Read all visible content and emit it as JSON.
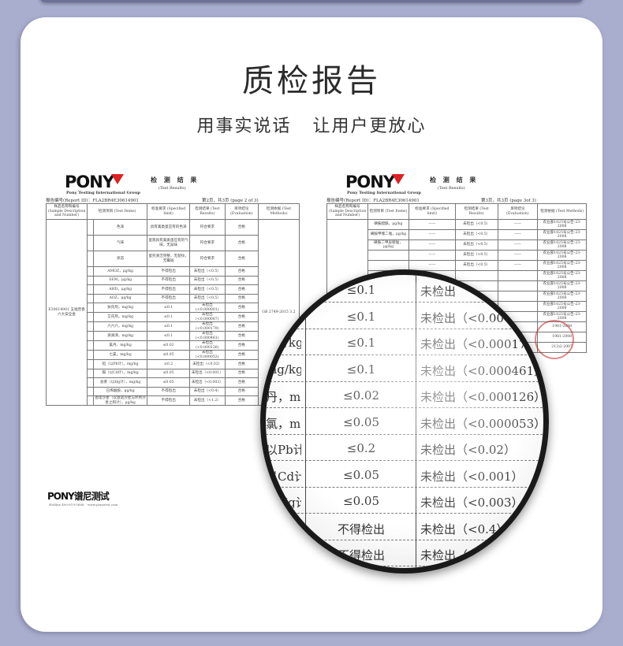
{
  "title": "质检报告",
  "subtitle": "用事实说话 让用户更放心",
  "colors": {
    "background": "#a9aecf",
    "card": "#ffffff",
    "logo_accent": "#dd2222"
  },
  "left_doc": {
    "logo": "PONY",
    "group": "Pony Testing International Group",
    "heading": "检 测 结 果",
    "heading_en": "(Test Results)",
    "report_id": "报告编号(Report ID)：FLA2BR4E30614901",
    "page": "第2页，共3页 (page 2 of 3)",
    "columns": [
      "样品名称和编号 (Sample Description and Number)",
      "检测项目 (Test Items)",
      "标准要求 (Specified limit)",
      "检测结果 (Test Results)",
      "单项结论 (Evaluation)",
      "检测依据 (Test Methods)"
    ],
    "sample": "E30614901 五福普香六大安全金",
    "method": "GB 2749-2015 3.2",
    "rows": [
      [
        "色泽",
        "具有禽类蛋应有的色泽",
        "符合要求",
        "合格"
      ],
      [
        "气味",
        "蛋液具有禽类蛋应有的气味，无异味",
        "符合要求",
        "合格"
      ],
      [
        "状态",
        "蛋壳清洁完整，无裂纹，无霉斑",
        "符合要求",
        "合格"
      ],
      [
        "AMOZ，μg/kg",
        "不得检出",
        "未检出（<0.5）",
        "合格"
      ],
      [
        "SEM，μg/kg",
        "不得检出",
        "未检出（<0.5）",
        "合格"
      ],
      [
        "AHD，μg/kg",
        "不得检出",
        "未检出（<0.5）",
        "合格"
      ],
      [
        "AOZ，μg/kg",
        "不得检出",
        "未检出（<0.5）",
        "合格"
      ],
      [
        "狄氏剂，mg/kg",
        "≤0.1",
        "未检出(<0.000001)",
        "合格"
      ],
      [
        "艾氏剂，mg/kg",
        "≤0.1",
        "未检出(<0.000087)",
        "合格"
      ],
      [
        "六六六，mg/kg",
        "≤0.1",
        "未检出(<0.000179)",
        "合格"
      ],
      [
        "滴滴涕，mg/kg",
        "≤0.1",
        "未检出(<0.000461)",
        "合格"
      ],
      [
        "氯丹，mg/kg",
        "≤0.02",
        "未检出(<0.000126)",
        "合格"
      ],
      [
        "七氯，mg/kg",
        "≤0.05",
        "未检出(<0.000053)",
        "合格"
      ],
      [
        "铅（以Pb计），mg/kg",
        "≤0.2",
        "未检出（<0.02）",
        "合格"
      ],
      [
        "镉（以Cd计），mg/kg",
        "≤0.05",
        "未检出（<0.001）",
        "合格"
      ],
      [
        "总汞（以Hg计），mg/kg",
        "≤0.05",
        "未检出（<0.003）",
        "合格"
      ],
      [
        "已烯雌酚，μg/kg",
        "不得检出",
        "未检出（<0.4）",
        "合格"
      ],
      [
        "恩诺沙星（以恩诺沙星与环丙沙星之和计），μg/kg",
        "不得检出",
        "未检出（<1.2）",
        "合格"
      ]
    ],
    "footer_logo": "PONY谱尼测试",
    "hotline": "Hotline 400-819-5688",
    "website": "www.ponytest.com"
  },
  "right_doc": {
    "logo": "PONY",
    "group": "Pony Testing International Group",
    "heading": "检 测 结 果",
    "heading_en": "(Test Results)",
    "report_id": "报告编号(Report ID)：FLA2BR4E30614901",
    "page": "第3页，共3页 (page 3of 3)",
    "columns": [
      "样品名称和编号 (Sample Description and Number)",
      "检测项目 (Test Items)",
      "标准要求 (Specified limit)",
      "检测结果 (Test Results)",
      "单项结论 (Evaluation)",
      "检测依据 (Test Methods)"
    ],
    "rows": [
      [
        "磺胺醋酰，μg/kg",
        "——",
        "未检出（<0.5）",
        "——",
        "农业部1025号公告-23-2008"
      ],
      [
        "磺胺甲噻二唑，μg/kg",
        "——",
        "未检出（<0.5）",
        "——",
        "农业部1025号公告-23-2008"
      ],
      [
        "磺胺二甲异噁唑，μg/kg",
        "——",
        "未检出（<0.5）",
        "——",
        "农业部1025号公告-23-2008"
      ],
      [
        "",
        "——",
        "未检出（<0.5）",
        "——",
        "农业部1025号公告-23-2008"
      ],
      [
        "",
        "——",
        "未检出（<0.5）",
        "——",
        "农业部1025号公告-23-2008"
      ],
      [
        "",
        "",
        "",
        "",
        "农业部1025号公告-23-2008"
      ],
      [
        "",
        "",
        "",
        "",
        "农业部1025号公告-23-2008"
      ],
      [
        "",
        "",
        "",
        "",
        "农业部1025号公告-23-2008"
      ],
      [
        "",
        "",
        "",
        "",
        "农业部1025号公告-23-2008"
      ],
      [
        "",
        "",
        "",
        "",
        "农业部1025号公告-23-2008"
      ],
      [
        "",
        "",
        "",
        "",
        "1981-2008"
      ],
      [
        "",
        "",
        "",
        "",
        "1981-2008"
      ],
      [
        "",
        "",
        "",
        "",
        "213)2-2007"
      ]
    ]
  },
  "magnifier": {
    "rows": [
      [
        "",
        "≤0.1",
        "未检出"
      ],
      [
        "/kg",
        "≤0.1",
        "未检出（<0.000"
      ],
      [
        "mg/kg",
        "≤0.1",
        "未检出（<0.000179"
      ],
      [
        "mg/kg",
        "≤0.1",
        "未检出（<0.000461）"
      ],
      [
        "丹，mg/kg",
        "≤0.02",
        "未检出（<0.000126）"
      ],
      [
        "氯，mg/kg",
        "≤0.05",
        "未检出（<0.000053）"
      ],
      [
        "以Pb计），",
        "≤0.2",
        "未检出（<0.02）"
      ],
      [
        "以Cd计），",
        "≤0.05",
        "未检出（<0.001）"
      ],
      [
        "以Hg计），",
        "≤0.05",
        "未检出（<0.003）"
      ],
      [
        "μg/kg",
        "不得检出",
        "未检出（<0.4）"
      ],
      [
        "恩诺",
        "不得检出",
        "未检出（"
      ]
    ]
  }
}
